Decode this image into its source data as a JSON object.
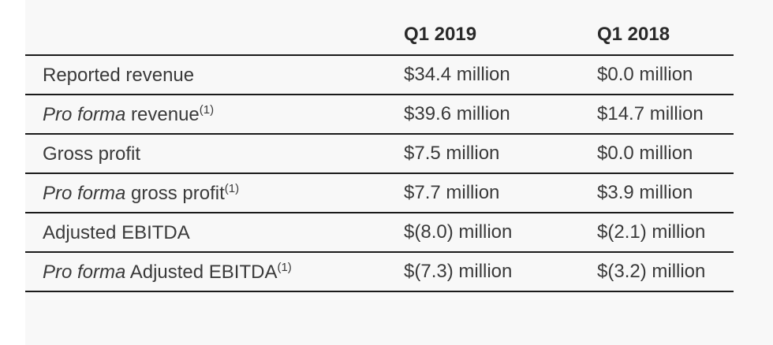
{
  "table": {
    "headers": [
      "",
      "Q1 2019",
      "Q1 2018"
    ],
    "rows": [
      {
        "italic": "",
        "label": "Reported revenue",
        "note": "",
        "q1_2019": "$34.4 million",
        "q1_2018": "$0.0 million"
      },
      {
        "italic": "Pro forma",
        "label": " revenue",
        "note": "(1)",
        "q1_2019": "$39.6 million",
        "q1_2018": "$14.7 million"
      },
      {
        "italic": "",
        "label": "Gross profit",
        "note": "",
        "q1_2019": "$7.5 million",
        "q1_2018": "$0.0 million"
      },
      {
        "italic": "Pro forma",
        "label": " gross profit",
        "note": "(1)",
        "q1_2019": "$7.7 million",
        "q1_2018": "$3.9 million"
      },
      {
        "italic": "",
        "label": "Adjusted EBITDA",
        "note": "",
        "q1_2019": "$(8.0) million",
        "q1_2018": "$(2.1) million"
      },
      {
        "italic": "Pro forma",
        "label": " Adjusted EBITDA",
        "note": "(1)",
        "q1_2019": "$(7.3) million",
        "q1_2018": "$(3.2) million"
      }
    ]
  }
}
